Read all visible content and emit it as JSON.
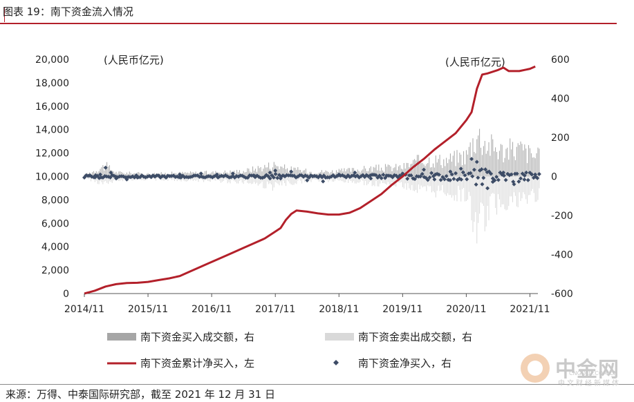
{
  "title": "图表 19：南下资金流入情况",
  "source": "来源：万得、中泰国际研究部，截至 2021 年 12 月 31 日",
  "watermark": {
    "name": "中金网",
    "url": "CNGOLD.COM.CN",
    "slogan": "中文财经新媒体"
  },
  "colors": {
    "cumulative": "#b3202a",
    "buy": "#a6a6a6",
    "sell": "#d9d9d9",
    "net": "#3d4c66",
    "rule": "#b3202a"
  },
  "chart_data": {
    "type": "line",
    "x_ticks": [
      "2014/11",
      "2015/11",
      "2016/11",
      "2017/11",
      "2018/11",
      "2019/11",
      "2020/11",
      "2021/11"
    ],
    "y_left": {
      "unit_label": "(人民币亿元)",
      "ticks": [
        "0",
        "2,000",
        "4,000",
        "6,000",
        "8,000",
        "10,000",
        "12,000",
        "14,000",
        "16,000",
        "18,000",
        "20,000"
      ],
      "range": [
        0,
        20000
      ]
    },
    "y_right": {
      "unit_label": "(人民币亿元)",
      "ticks": [
        "-600",
        "-400",
        "-200",
        "0",
        "200",
        "400",
        "600"
      ],
      "range": [
        -600,
        600
      ]
    },
    "legend": [
      {
        "label": "南下资金买入成交额，右",
        "kind": "bar",
        "color": "#a6a6a6"
      },
      {
        "label": "南下资金卖出成交额，右",
        "kind": "bar",
        "color": "#d9d9d9"
      },
      {
        "label": "南下资金累计净买入，左",
        "kind": "line",
        "color": "#b3202a"
      },
      {
        "label": "南下资金净买入，右",
        "kind": "marker",
        "color": "#3d4c66"
      }
    ],
    "cumulative_series": {
      "axis": "left",
      "points": [
        [
          "2014-11",
          0
        ],
        [
          "2015-01",
          250
        ],
        [
          "2015-03",
          600
        ],
        [
          "2015-05",
          800
        ],
        [
          "2015-07",
          900
        ],
        [
          "2015-09",
          920
        ],
        [
          "2015-11",
          1000
        ],
        [
          "2016-01",
          1150
        ],
        [
          "2016-03",
          1300
        ],
        [
          "2016-05",
          1500
        ],
        [
          "2016-07",
          1900
        ],
        [
          "2016-09",
          2300
        ],
        [
          "2016-11",
          2700
        ],
        [
          "2017-01",
          3100
        ],
        [
          "2017-03",
          3500
        ],
        [
          "2017-05",
          3900
        ],
        [
          "2017-07",
          4300
        ],
        [
          "2017-09",
          4700
        ],
        [
          "2017-11",
          5300
        ],
        [
          "2017-12",
          5600
        ],
        [
          "2018-01",
          6300
        ],
        [
          "2018-02",
          6800
        ],
        [
          "2018-03",
          7100
        ],
        [
          "2018-05",
          7000
        ],
        [
          "2018-07",
          6850
        ],
        [
          "2018-09",
          6750
        ],
        [
          "2018-11",
          6750
        ],
        [
          "2019-01",
          6900
        ],
        [
          "2019-03",
          7300
        ],
        [
          "2019-05",
          7900
        ],
        [
          "2019-07",
          8500
        ],
        [
          "2019-09",
          9300
        ],
        [
          "2019-11",
          10000
        ],
        [
          "2020-01",
          10800
        ],
        [
          "2020-03",
          11500
        ],
        [
          "2020-05",
          12300
        ],
        [
          "2020-07",
          13000
        ],
        [
          "2020-09",
          13700
        ],
        [
          "2020-11",
          14800
        ],
        [
          "2020-12",
          15500
        ],
        [
          "2021-01",
          17500
        ],
        [
          "2021-02",
          18700
        ],
        [
          "2021-03",
          18800
        ],
        [
          "2021-05",
          19100
        ],
        [
          "2021-06",
          19300
        ],
        [
          "2021-07",
          19000
        ],
        [
          "2021-09",
          19000
        ],
        [
          "2021-11",
          19200
        ],
        [
          "2021-12",
          19400
        ]
      ]
    },
    "flow_envelope": {
      "axis": "right",
      "buy_upper": [
        [
          "2014-11",
          10
        ],
        [
          "2015-03",
          80
        ],
        [
          "2015-05",
          30
        ],
        [
          "2015-11",
          20
        ],
        [
          "2016-03",
          25
        ],
        [
          "2016-11",
          30
        ],
        [
          "2017-05",
          40
        ],
        [
          "2017-11",
          90
        ],
        [
          "2018-01",
          60
        ],
        [
          "2018-06",
          35
        ],
        [
          "2018-11",
          40
        ],
        [
          "2019-05",
          60
        ],
        [
          "2019-11",
          70
        ],
        [
          "2020-03",
          130
        ],
        [
          "2020-07",
          120
        ],
        [
          "2020-11",
          160
        ],
        [
          "2021-01",
          320
        ],
        [
          "2021-03",
          240
        ],
        [
          "2021-06",
          190
        ],
        [
          "2021-09",
          210
        ],
        [
          "2021-12",
          150
        ]
      ],
      "sell_lower": [
        [
          "2014-11",
          -10
        ],
        [
          "2015-03",
          -60
        ],
        [
          "2015-05",
          -25
        ],
        [
          "2015-11",
          -20
        ],
        [
          "2016-03",
          -25
        ],
        [
          "2016-11",
          -30
        ],
        [
          "2017-05",
          -40
        ],
        [
          "2017-11",
          -80
        ],
        [
          "2018-01",
          -50
        ],
        [
          "2018-06",
          -30
        ],
        [
          "2018-11",
          -35
        ],
        [
          "2019-05",
          -50
        ],
        [
          "2019-11",
          -60
        ],
        [
          "2020-03",
          -120
        ],
        [
          "2020-07",
          -110
        ],
        [
          "2020-11",
          -150
        ],
        [
          "2021-01",
          -380
        ],
        [
          "2021-03",
          -260
        ],
        [
          "2021-06",
          -180
        ],
        [
          "2021-09",
          -200
        ],
        [
          "2021-12",
          -140
        ]
      ]
    },
    "net_buy_points": {
      "axis": "right",
      "points": [
        [
          "2014-12",
          5
        ],
        [
          "2015-01",
          -5
        ],
        [
          "2015-02",
          10
        ],
        [
          "2015-03",
          45
        ],
        [
          "2015-04",
          20
        ],
        [
          "2015-05",
          -10
        ],
        [
          "2015-07",
          -15
        ],
        [
          "2015-09",
          -5
        ],
        [
          "2016-01",
          5
        ],
        [
          "2016-05",
          10
        ],
        [
          "2016-09",
          15
        ],
        [
          "2016-12",
          10
        ],
        [
          "2017-03",
          15
        ],
        [
          "2017-07",
          5
        ],
        [
          "2017-10",
          20
        ],
        [
          "2017-11",
          30
        ],
        [
          "2017-12",
          -10
        ],
        [
          "2018-02",
          25
        ],
        [
          "2018-05",
          -20
        ],
        [
          "2018-08",
          -25
        ],
        [
          "2018-11",
          10
        ],
        [
          "2019-02",
          20
        ],
        [
          "2019-05",
          -10
        ],
        [
          "2019-08",
          5
        ],
        [
          "2019-11",
          15
        ],
        [
          "2020-01",
          -10
        ],
        [
          "2020-03",
          35
        ],
        [
          "2020-05",
          -15
        ],
        [
          "2020-08",
          25
        ],
        [
          "2020-10",
          40
        ],
        [
          "2020-12",
          90
        ],
        [
          "2021-01",
          75
        ],
        [
          "2021-02",
          -40
        ],
        [
          "2021-03",
          -60
        ],
        [
          "2021-04",
          -10
        ],
        [
          "2021-06",
          20
        ],
        [
          "2021-08",
          -40
        ],
        [
          "2021-10",
          5
        ],
        [
          "2021-12",
          10
        ]
      ]
    }
  }
}
